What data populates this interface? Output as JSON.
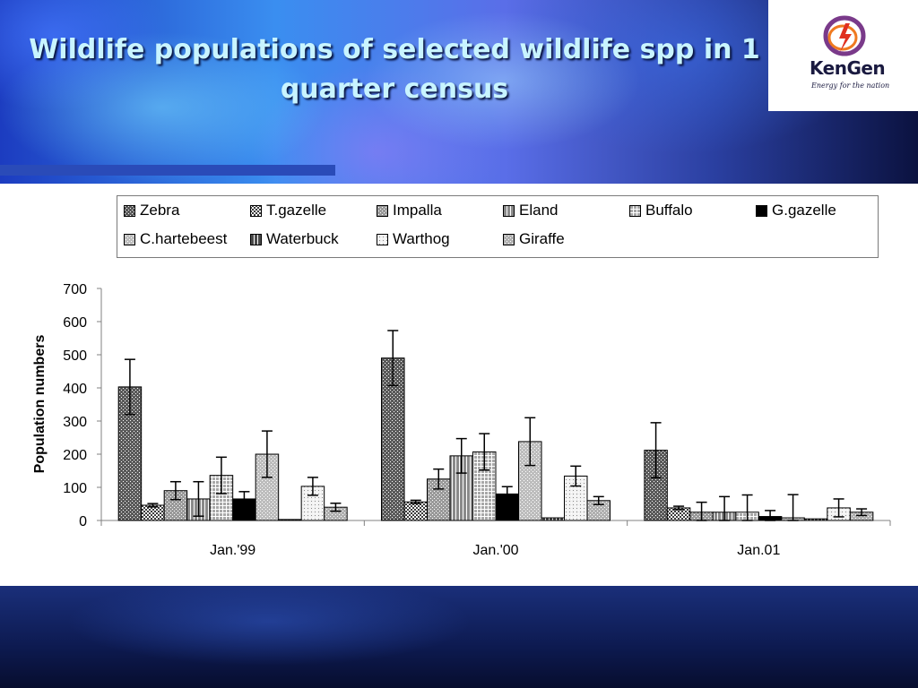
{
  "slide": {
    "title": "Wildlife populations of selected wildlife spp in 1 quarter census",
    "logo": {
      "name": "KenGen",
      "tagline": "Energy for the nation"
    }
  },
  "chart_data": {
    "type": "bar",
    "title": "",
    "xlabel": "",
    "ylabel": "Population numbers",
    "ylim": [
      0,
      700
    ],
    "yticks": [
      0,
      100,
      200,
      300,
      400,
      500,
      600,
      700
    ],
    "grid": false,
    "legend_position": "top",
    "error_bars": true,
    "categories": [
      "Jan.'99",
      "Jan.'00",
      "Jan.01"
    ],
    "series": [
      {
        "name": "Zebra",
        "values": [
          403,
          490,
          212
        ],
        "errors": [
          83,
          83,
          83
        ],
        "color": "#5a5a5a",
        "pattern": "dots"
      },
      {
        "name": "T.gazelle",
        "values": [
          46,
          56,
          38
        ],
        "errors": [
          5,
          5,
          5
        ],
        "color": "#3c3c3c",
        "pattern": "check"
      },
      {
        "name": "Impalla",
        "values": [
          90,
          125,
          25
        ],
        "errors": [
          27,
          30,
          30
        ],
        "color": "#9a9a9a",
        "pattern": "fine"
      },
      {
        "name": "Eland",
        "values": [
          65,
          195,
          25
        ],
        "errors": [
          52,
          52,
          47
        ],
        "color": "#8a8a8a",
        "pattern": "stripe"
      },
      {
        "name": "Buffalo",
        "values": [
          136,
          207,
          25
        ],
        "errors": [
          55,
          55,
          52
        ],
        "color": "#a8a8a8",
        "pattern": "grid"
      },
      {
        "name": "G.gazelle",
        "values": [
          65,
          80,
          12
        ],
        "errors": [
          22,
          22,
          18
        ],
        "color": "#000000",
        "pattern": "solid"
      },
      {
        "name": "C.hartebeest",
        "values": [
          200,
          238,
          8
        ],
        "errors": [
          70,
          72,
          70
        ],
        "color": "#bdbdbd",
        "pattern": "fine"
      },
      {
        "name": "Waterbuck",
        "values": [
          3,
          8,
          5
        ],
        "errors": [
          0,
          0,
          0
        ],
        "color": "#4a4a4a",
        "pattern": "stripe"
      },
      {
        "name": "Warthog",
        "values": [
          103,
          134,
          38
        ],
        "errors": [
          27,
          30,
          27
        ],
        "color": "#f2f2f2",
        "pattern": "dots"
      },
      {
        "name": "Giraffe",
        "values": [
          40,
          60,
          25
        ],
        "errors": [
          12,
          12,
          10
        ],
        "color": "#b0b0b0",
        "pattern": "fine"
      }
    ]
  }
}
